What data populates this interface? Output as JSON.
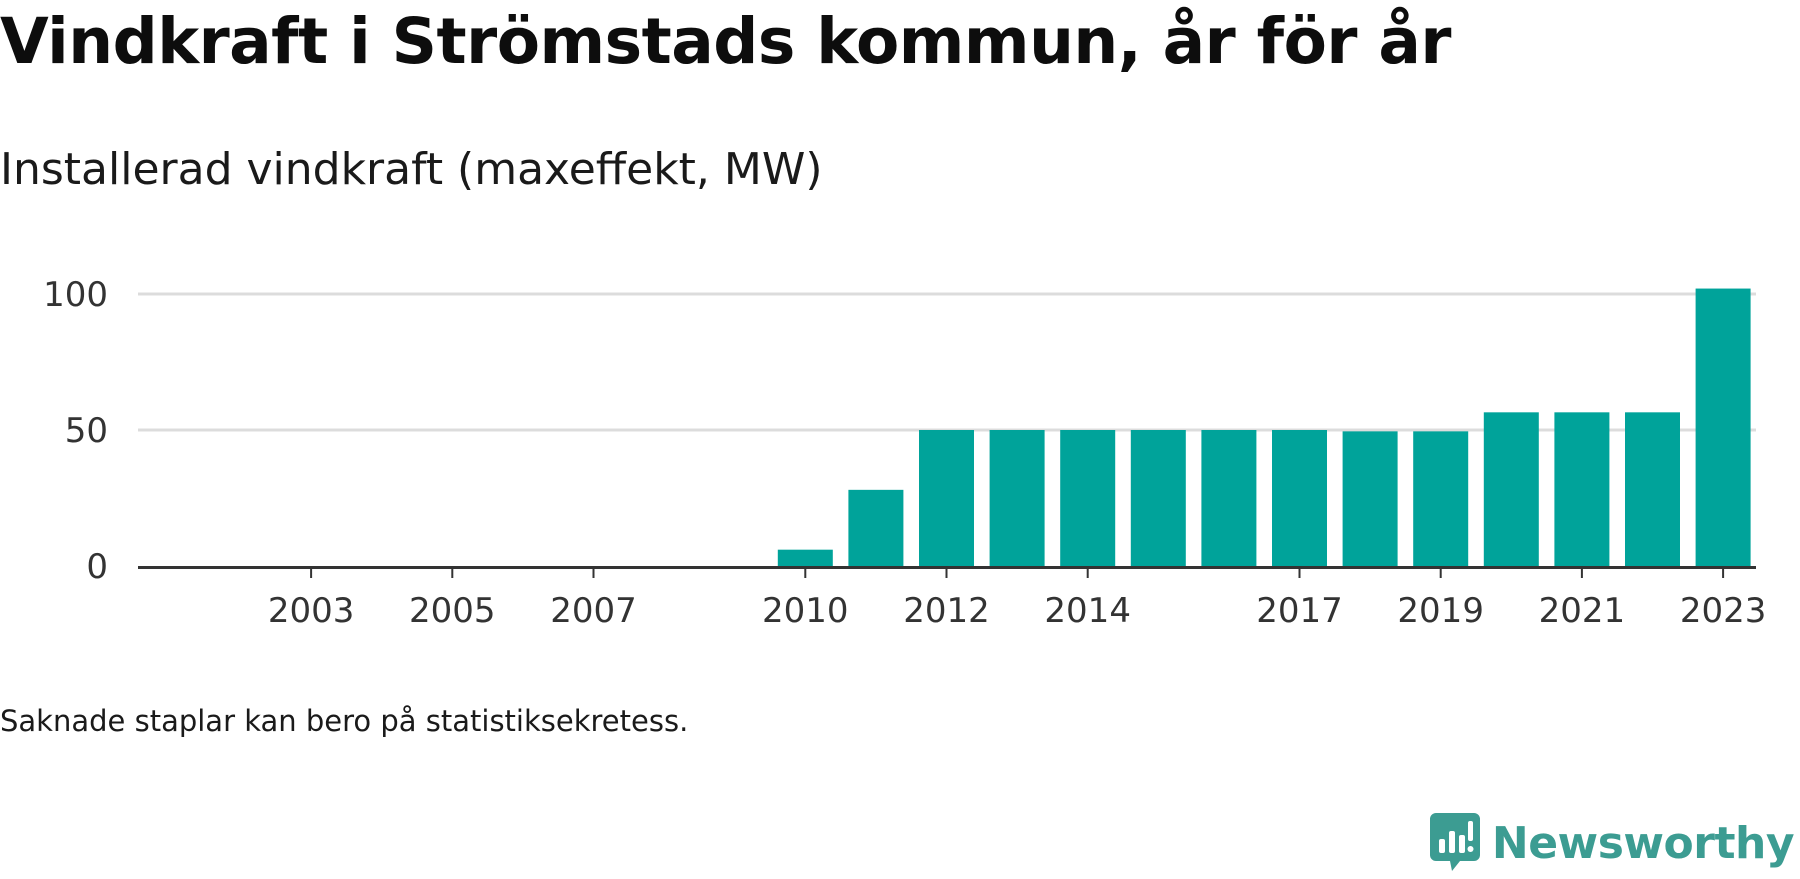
{
  "title": "Vindkraft i Strömstads kommun, år för år",
  "subtitle": "Installerad vindkraft (maxeffekt, MW)",
  "note": "Saknade staplar kan bero på statistiksekretess.",
  "brand": {
    "name": "Newsworthy",
    "logo_icon": "newsworthy-logo-icon",
    "color": "#3c9c92"
  },
  "colors": {
    "bar": "#00a39a",
    "gridline": "#dcdcdc",
    "axis": "#333333"
  },
  "chart_data": {
    "type": "bar",
    "title": "Vindkraft i Strömstads kommun, år för år",
    "subtitle": "Installerad vindkraft (maxeffekt, MW)",
    "xlabel": "",
    "ylabel": "",
    "ylim": [
      0,
      108
    ],
    "grid": true,
    "yticks": [
      0,
      50,
      100
    ],
    "xticks": [
      "2003",
      "2005",
      "2007",
      "2010",
      "2012",
      "2014",
      "2017",
      "2019",
      "2021",
      "2023"
    ],
    "categories": [
      "2002",
      "2003",
      "2004",
      "2005",
      "2006",
      "2007",
      "2008",
      "2009",
      "2010",
      "2011",
      "2012",
      "2013",
      "2014",
      "2015",
      "2016",
      "2017",
      "2018",
      "2019",
      "2020",
      "2021",
      "2022",
      "2023"
    ],
    "values": [
      null,
      null,
      null,
      null,
      null,
      null,
      null,
      null,
      6,
      28,
      50,
      50,
      50,
      50,
      50,
      50,
      49.5,
      49.5,
      56.5,
      56.5,
      56.5,
      102
    ]
  }
}
